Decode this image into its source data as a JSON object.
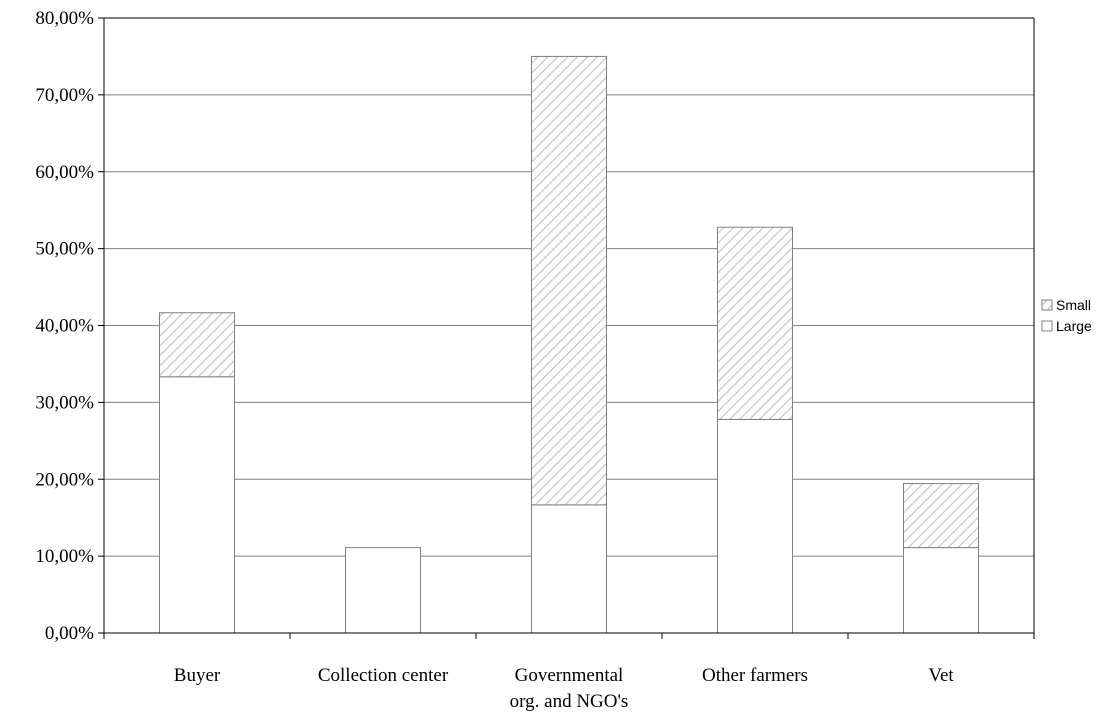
{
  "chart_data": {
    "type": "bar",
    "stacked": true,
    "categories": [
      "Buyer",
      "Collection center",
      "Governmental org. and NGO's",
      "Other farmers",
      "Vet"
    ],
    "category_lines": [
      [
        "Buyer"
      ],
      [
        "Collection center"
      ],
      [
        "Governmental",
        "org. and NGO's"
      ],
      [
        "Other farmers"
      ],
      [
        "Vet"
      ]
    ],
    "series": [
      {
        "name": "Large",
        "values": [
          33.33,
          11.11,
          16.67,
          27.78,
          11.11
        ],
        "fill": "plain"
      },
      {
        "name": "Small",
        "values": [
          8.33,
          0,
          58.33,
          25.0,
          8.33
        ],
        "fill": "hatched"
      }
    ],
    "yticks": [
      "0,00%",
      "10,00%",
      "20,00%",
      "30,00%",
      "40,00%",
      "50,00%",
      "60,00%",
      "70,00%",
      "80,00%"
    ],
    "ylim": [
      0,
      80
    ],
    "grid": true,
    "legend_position": "right",
    "legend_order": [
      "Small",
      "Large"
    ],
    "title": "",
    "xlabel": "",
    "ylabel": "",
    "colors": {
      "bar_edge": "#808080",
      "grid": "#808080",
      "axis": "#000000",
      "hatch": "#c0c0c0",
      "fill": "#ffffff"
    }
  }
}
